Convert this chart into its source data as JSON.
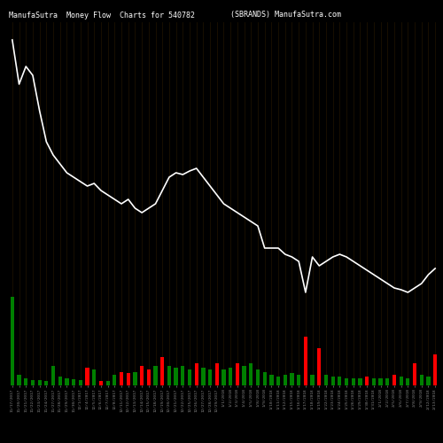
{
  "title_left": "ManufaSutra  Money Flow  Charts for 540782",
  "title_right": "(SBRANDS) ManufaSutra.com",
  "bg_color": "#000000",
  "bar_colors": [
    "green",
    "green",
    "green",
    "green",
    "green",
    "green",
    "green",
    "green",
    "green",
    "green",
    "green",
    "red",
    "green",
    "red",
    "green",
    "green",
    "red",
    "red",
    "green",
    "red",
    "red",
    "green",
    "red",
    "green",
    "green",
    "green",
    "green",
    "red",
    "green",
    "green",
    "red",
    "green",
    "green",
    "red",
    "green",
    "green",
    "green",
    "green",
    "green",
    "green",
    "green",
    "green",
    "green",
    "red",
    "green",
    "red",
    "green",
    "green",
    "green",
    "green",
    "green",
    "green",
    "red",
    "green",
    "green",
    "green",
    "red",
    "green",
    "green",
    "red",
    "green",
    "green",
    "red"
  ],
  "bar_heights": [
    100,
    12,
    8,
    6,
    6,
    5,
    22,
    10,
    8,
    7,
    6,
    20,
    18,
    5,
    5,
    12,
    15,
    14,
    15,
    22,
    18,
    22,
    32,
    22,
    20,
    22,
    18,
    25,
    20,
    18,
    25,
    18,
    20,
    25,
    22,
    25,
    18,
    15,
    12,
    10,
    12,
    14,
    12,
    55,
    12,
    42,
    12,
    10,
    10,
    8,
    8,
    8,
    10,
    8,
    8,
    8,
    12,
    10,
    8,
    25,
    12,
    10,
    35
  ],
  "line_values": [
    390,
    340,
    360,
    350,
    310,
    275,
    260,
    250,
    240,
    235,
    230,
    225,
    228,
    220,
    215,
    210,
    205,
    210,
    200,
    195,
    200,
    205,
    220,
    235,
    240,
    238,
    242,
    245,
    235,
    225,
    215,
    205,
    200,
    195,
    190,
    185,
    180,
    155,
    155,
    155,
    148,
    145,
    140,
    105,
    145,
    135,
    140,
    145,
    148,
    145,
    140,
    135,
    130,
    125,
    120,
    115,
    110,
    108,
    105,
    110,
    115,
    125,
    132
  ],
  "line_color": "#ffffff",
  "grid_color": "#2a1a00",
  "tick_color": "#888888",
  "xlabel_color": "#888888",
  "n_bars": 63,
  "dates": [
    "11/17/2017",
    "11/20/2017",
    "11/21/2017",
    "11/22/2017",
    "11/23/2017",
    "11/24/2017",
    "11/27/2017",
    "11/28/2017",
    "11/29/2017",
    "11/30/2017",
    "12/1/2017",
    "12/4/2017",
    "12/5/2017",
    "12/6/2017",
    "12/7/2017",
    "12/8/2017",
    "12/11/2017",
    "12/12/2017",
    "12/13/2017",
    "12/14/2017",
    "12/15/2017",
    "12/18/2017",
    "12/19/2017",
    "12/20/2017",
    "12/21/2017",
    "12/22/2017",
    "12/25/2017",
    "12/26/2017",
    "12/27/2017",
    "12/28/2017",
    "12/29/2017",
    "1/1/2018",
    "1/2/2018",
    "1/3/2018",
    "1/4/2018",
    "1/5/2018",
    "1/8/2018",
    "1/9/2018",
    "1/10/2018",
    "1/11/2018",
    "1/12/2018",
    "1/15/2018",
    "1/16/2018",
    "1/17/2018",
    "1/18/2018",
    "1/19/2018",
    "1/22/2018",
    "1/23/2018",
    "1/24/2018",
    "1/25/2018",
    "1/26/2018",
    "1/29/2018",
    "1/30/2018",
    "1/31/2018",
    "2/1/2018",
    "2/2/2018",
    "2/5/2018",
    "2/6/2018",
    "2/7/2018",
    "2/8/2018",
    "2/9/2018",
    "2/12/2018",
    "2/13/2018"
  ]
}
